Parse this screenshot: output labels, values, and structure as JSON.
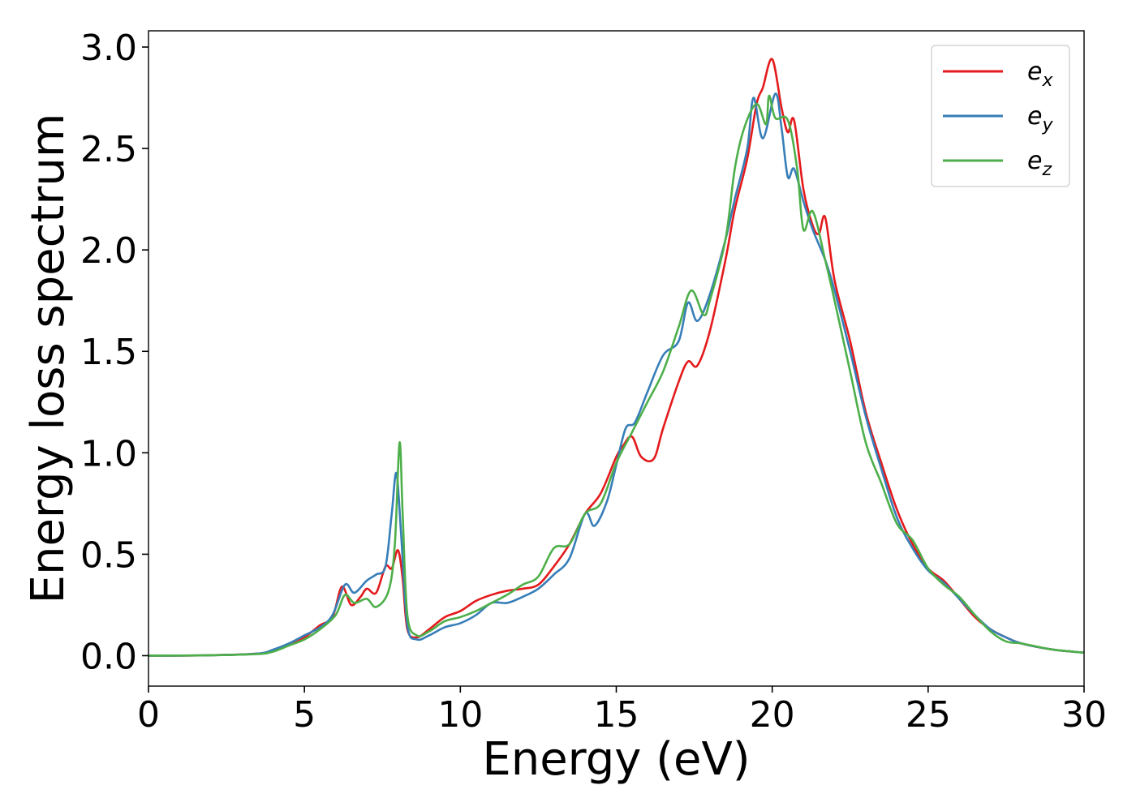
{
  "chart_data": {
    "type": "line",
    "title": "",
    "xlabel": "Energy (eV)",
    "ylabel": "Energy loss spectrum",
    "xlim": [
      0,
      30
    ],
    "ylim": [
      -0.15,
      3.08
    ],
    "x_ticks": [
      0,
      5,
      10,
      15,
      20,
      25,
      30
    ],
    "x_tick_labels": [
      "0",
      "5",
      "10",
      "15",
      "20",
      "25",
      "30"
    ],
    "y_ticks": [
      0.0,
      0.5,
      1.0,
      1.5,
      2.0,
      2.5,
      3.0
    ],
    "y_tick_labels": [
      "0.0",
      "0.5",
      "1.0",
      "1.5",
      "2.0",
      "2.5",
      "3.0"
    ],
    "grid": false,
    "legend_position": "top-right",
    "series": [
      {
        "name": "e",
        "subscript": "x",
        "color": "#e41a1c",
        "points": [
          [
            0,
            0.0
          ],
          [
            2,
            0.002
          ],
          [
            3.5,
            0.01
          ],
          [
            4,
            0.025
          ],
          [
            4.5,
            0.05
          ],
          [
            5,
            0.09
          ],
          [
            5.5,
            0.15
          ],
          [
            5.9,
            0.19
          ],
          [
            6.2,
            0.34
          ],
          [
            6.5,
            0.25
          ],
          [
            6.8,
            0.29
          ],
          [
            7.0,
            0.33
          ],
          [
            7.3,
            0.31
          ],
          [
            7.6,
            0.44
          ],
          [
            7.8,
            0.43
          ],
          [
            8.0,
            0.52
          ],
          [
            8.15,
            0.38
          ],
          [
            8.3,
            0.13
          ],
          [
            8.6,
            0.09
          ],
          [
            9.0,
            0.13
          ],
          [
            9.5,
            0.19
          ],
          [
            10.0,
            0.22
          ],
          [
            10.5,
            0.27
          ],
          [
            11.0,
            0.3
          ],
          [
            11.5,
            0.32
          ],
          [
            12.0,
            0.33
          ],
          [
            12.5,
            0.35
          ],
          [
            13.0,
            0.44
          ],
          [
            13.5,
            0.55
          ],
          [
            14.0,
            0.7
          ],
          [
            14.5,
            0.8
          ],
          [
            15.0,
            0.98
          ],
          [
            15.2,
            1.03
          ],
          [
            15.5,
            1.08
          ],
          [
            15.8,
            0.98
          ],
          [
            16.2,
            0.97
          ],
          [
            16.5,
            1.12
          ],
          [
            17.0,
            1.35
          ],
          [
            17.3,
            1.45
          ],
          [
            17.6,
            1.43
          ],
          [
            18.0,
            1.6
          ],
          [
            18.5,
            1.95
          ],
          [
            18.8,
            2.2
          ],
          [
            19.2,
            2.45
          ],
          [
            19.5,
            2.72
          ],
          [
            19.7,
            2.8
          ],
          [
            20.0,
            2.94
          ],
          [
            20.3,
            2.7
          ],
          [
            20.5,
            2.58
          ],
          [
            20.7,
            2.64
          ],
          [
            21.0,
            2.3
          ],
          [
            21.3,
            2.12
          ],
          [
            21.5,
            2.08
          ],
          [
            21.7,
            2.16
          ],
          [
            22.0,
            1.85
          ],
          [
            22.5,
            1.55
          ],
          [
            23.0,
            1.2
          ],
          [
            23.5,
            0.95
          ],
          [
            24.0,
            0.72
          ],
          [
            24.5,
            0.55
          ],
          [
            25.0,
            0.43
          ],
          [
            25.5,
            0.37
          ],
          [
            26.0,
            0.28
          ],
          [
            26.5,
            0.19
          ],
          [
            27.0,
            0.13
          ],
          [
            27.5,
            0.09
          ],
          [
            28.0,
            0.06
          ],
          [
            29.0,
            0.03
          ],
          [
            30.0,
            0.015
          ]
        ]
      },
      {
        "name": "e",
        "subscript": "y",
        "color": "#377eb8",
        "points": [
          [
            0,
            0.0
          ],
          [
            2,
            0.002
          ],
          [
            3.5,
            0.01
          ],
          [
            4,
            0.03
          ],
          [
            4.5,
            0.06
          ],
          [
            5,
            0.1
          ],
          [
            5.5,
            0.14
          ],
          [
            5.9,
            0.2
          ],
          [
            6.3,
            0.35
          ],
          [
            6.6,
            0.31
          ],
          [
            7.0,
            0.37
          ],
          [
            7.3,
            0.4
          ],
          [
            7.6,
            0.44
          ],
          [
            7.8,
            0.7
          ],
          [
            7.95,
            0.9
          ],
          [
            8.1,
            0.6
          ],
          [
            8.3,
            0.15
          ],
          [
            8.6,
            0.08
          ],
          [
            9.0,
            0.1
          ],
          [
            9.5,
            0.14
          ],
          [
            10.0,
            0.16
          ],
          [
            10.5,
            0.2
          ],
          [
            11.0,
            0.26
          ],
          [
            11.5,
            0.26
          ],
          [
            12.0,
            0.29
          ],
          [
            12.5,
            0.33
          ],
          [
            13.0,
            0.4
          ],
          [
            13.5,
            0.48
          ],
          [
            14.0,
            0.7
          ],
          [
            14.3,
            0.64
          ],
          [
            14.7,
            0.76
          ],
          [
            15.0,
            0.94
          ],
          [
            15.3,
            1.12
          ],
          [
            15.6,
            1.15
          ],
          [
            16.0,
            1.3
          ],
          [
            16.5,
            1.48
          ],
          [
            17.0,
            1.55
          ],
          [
            17.3,
            1.74
          ],
          [
            17.6,
            1.65
          ],
          [
            18.0,
            1.78
          ],
          [
            18.5,
            2.05
          ],
          [
            18.8,
            2.25
          ],
          [
            19.2,
            2.5
          ],
          [
            19.4,
            2.75
          ],
          [
            19.7,
            2.55
          ],
          [
            20.1,
            2.77
          ],
          [
            20.3,
            2.6
          ],
          [
            20.5,
            2.36
          ],
          [
            20.7,
            2.4
          ],
          [
            21.0,
            2.24
          ],
          [
            21.3,
            2.1
          ],
          [
            21.7,
            1.95
          ],
          [
            22.0,
            1.8
          ],
          [
            22.5,
            1.5
          ],
          [
            23.0,
            1.18
          ],
          [
            23.5,
            0.92
          ],
          [
            24.0,
            0.68
          ],
          [
            24.5,
            0.53
          ],
          [
            25.0,
            0.42
          ],
          [
            25.5,
            0.36
          ],
          [
            26.0,
            0.28
          ],
          [
            26.5,
            0.2
          ],
          [
            27.0,
            0.13
          ],
          [
            27.5,
            0.09
          ],
          [
            28.0,
            0.06
          ],
          [
            29.0,
            0.03
          ],
          [
            30.0,
            0.015
          ]
        ]
      },
      {
        "name": "e",
        "subscript": "z",
        "color": "#4daf4a",
        "points": [
          [
            0,
            0.0
          ],
          [
            2,
            0.002
          ],
          [
            3.5,
            0.008
          ],
          [
            4,
            0.02
          ],
          [
            4.5,
            0.05
          ],
          [
            5,
            0.08
          ],
          [
            5.5,
            0.13
          ],
          [
            6.0,
            0.2
          ],
          [
            6.3,
            0.3
          ],
          [
            6.6,
            0.26
          ],
          [
            7.0,
            0.28
          ],
          [
            7.3,
            0.24
          ],
          [
            7.7,
            0.32
          ],
          [
            7.9,
            0.55
          ],
          [
            8.05,
            1.05
          ],
          [
            8.15,
            0.7
          ],
          [
            8.3,
            0.2
          ],
          [
            8.6,
            0.1
          ],
          [
            9.0,
            0.12
          ],
          [
            9.5,
            0.17
          ],
          [
            10.0,
            0.19
          ],
          [
            10.5,
            0.22
          ],
          [
            11.0,
            0.26
          ],
          [
            11.5,
            0.3
          ],
          [
            12.0,
            0.35
          ],
          [
            12.5,
            0.39
          ],
          [
            13.0,
            0.53
          ],
          [
            13.5,
            0.55
          ],
          [
            14.0,
            0.7
          ],
          [
            14.5,
            0.75
          ],
          [
            15.0,
            0.95
          ],
          [
            15.5,
            1.1
          ],
          [
            16.0,
            1.25
          ],
          [
            16.5,
            1.4
          ],
          [
            17.0,
            1.62
          ],
          [
            17.4,
            1.8
          ],
          [
            17.8,
            1.68
          ],
          [
            18.0,
            1.75
          ],
          [
            18.5,
            2.05
          ],
          [
            18.8,
            2.4
          ],
          [
            19.1,
            2.6
          ],
          [
            19.5,
            2.72
          ],
          [
            19.8,
            2.62
          ],
          [
            19.9,
            2.76
          ],
          [
            20.1,
            2.65
          ],
          [
            20.5,
            2.64
          ],
          [
            20.8,
            2.4
          ],
          [
            21.0,
            2.1
          ],
          [
            21.3,
            2.19
          ],
          [
            21.7,
            1.95
          ],
          [
            22.0,
            1.75
          ],
          [
            22.5,
            1.4
          ],
          [
            23.0,
            1.05
          ],
          [
            23.5,
            0.85
          ],
          [
            24.0,
            0.65
          ],
          [
            24.5,
            0.57
          ],
          [
            25.0,
            0.43
          ],
          [
            25.5,
            0.35
          ],
          [
            26.0,
            0.29
          ],
          [
            26.5,
            0.2
          ],
          [
            27.0,
            0.12
          ],
          [
            27.5,
            0.07
          ],
          [
            28.0,
            0.06
          ],
          [
            29.0,
            0.03
          ],
          [
            30.0,
            0.015
          ]
        ]
      }
    ]
  }
}
